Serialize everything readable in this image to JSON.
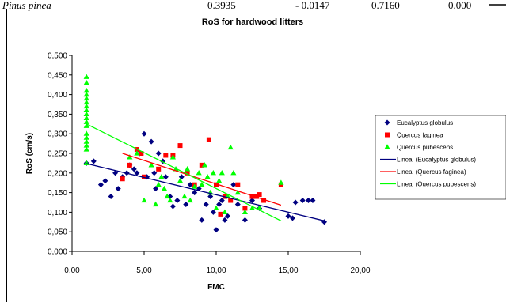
{
  "top_row": {
    "species": "Pinus pinea",
    "values": [
      "0.3935",
      "- 0.0147",
      "0.7160",
      "0.000"
    ]
  },
  "chart_data": {
    "type": "scatter",
    "title": "RoS for hardwood litters",
    "xlabel": "FMC",
    "ylabel": "RoS (cm/s)",
    "xlim": [
      0,
      20
    ],
    "ylim": [
      0,
      0.5
    ],
    "x_ticks": [
      "0,00",
      "5,00",
      "10,00",
      "15,00",
      "20,00"
    ],
    "y_ticks": [
      "0,000",
      "0,050",
      "0,100",
      "0,150",
      "0,200",
      "0,250",
      "0,300",
      "0,350",
      "0,400",
      "0,450",
      "0,500"
    ],
    "grid": false,
    "legend_position": "right",
    "series": [
      {
        "name": "Eucalyptus globulus",
        "marker": "diamond",
        "color": "#000080",
        "points": [
          [
            1.0,
            0.225
          ],
          [
            1.5,
            0.23
          ],
          [
            2.0,
            0.17
          ],
          [
            2.3,
            0.18
          ],
          [
            2.7,
            0.14
          ],
          [
            3.0,
            0.2
          ],
          [
            3.2,
            0.16
          ],
          [
            3.5,
            0.19
          ],
          [
            3.8,
            0.2
          ],
          [
            4.0,
            0.22
          ],
          [
            4.3,
            0.21
          ],
          [
            4.5,
            0.2
          ],
          [
            4.7,
            0.25
          ],
          [
            5.0,
            0.3
          ],
          [
            5.2,
            0.19
          ],
          [
            5.5,
            0.28
          ],
          [
            5.7,
            0.2
          ],
          [
            5.8,
            0.16
          ],
          [
            6.0,
            0.25
          ],
          [
            6.3,
            0.23
          ],
          [
            6.5,
            0.19
          ],
          [
            6.8,
            0.14
          ],
          [
            7.0,
            0.115
          ],
          [
            7.3,
            0.13
          ],
          [
            7.6,
            0.19
          ],
          [
            7.9,
            0.12
          ],
          [
            8.2,
            0.17
          ],
          [
            8.5,
            0.15
          ],
          [
            8.8,
            0.16
          ],
          [
            9.0,
            0.08
          ],
          [
            9.3,
            0.12
          ],
          [
            9.6,
            0.14
          ],
          [
            9.8,
            0.1
          ],
          [
            10.0,
            0.055
          ],
          [
            10.2,
            0.12
          ],
          [
            10.4,
            0.13
          ],
          [
            10.6,
            0.08
          ],
          [
            10.8,
            0.09
          ],
          [
            11.2,
            0.17
          ],
          [
            11.5,
            0.12
          ],
          [
            12.0,
            0.08
          ],
          [
            12.5,
            0.13
          ],
          [
            13.0,
            0.11
          ],
          [
            15.0,
            0.09
          ],
          [
            15.3,
            0.085
          ],
          [
            15.5,
            0.125
          ],
          [
            16.0,
            0.13
          ],
          [
            16.4,
            0.13
          ],
          [
            16.7,
            0.13
          ],
          [
            17.5,
            0.075
          ]
        ]
      },
      {
        "name": "Quercus faginea",
        "marker": "square",
        "color": "#FF0000",
        "points": [
          [
            3.5,
            0.185
          ],
          [
            4.0,
            0.22
          ],
          [
            4.5,
            0.26
          ],
          [
            4.8,
            0.25
          ],
          [
            5.0,
            0.19
          ],
          [
            6.0,
            0.21
          ],
          [
            6.5,
            0.245
          ],
          [
            7.0,
            0.245
          ],
          [
            7.5,
            0.27
          ],
          [
            8.0,
            0.2
          ],
          [
            8.5,
            0.17
          ],
          [
            9.0,
            0.22
          ],
          [
            9.5,
            0.285
          ],
          [
            10.0,
            0.17
          ],
          [
            10.3,
            0.095
          ],
          [
            10.6,
            0.14
          ],
          [
            11.0,
            0.13
          ],
          [
            11.5,
            0.17
          ],
          [
            12.0,
            0.11
          ],
          [
            12.5,
            0.14
          ],
          [
            12.8,
            0.14
          ],
          [
            13.0,
            0.145
          ],
          [
            13.3,
            0.13
          ],
          [
            14.5,
            0.17
          ]
        ]
      },
      {
        "name": "Quercus pubescens",
        "marker": "triangle",
        "color": "#00FF00",
        "points": [
          [
            1.0,
            0.445
          ],
          [
            1.0,
            0.43
          ],
          [
            1.0,
            0.41
          ],
          [
            1.0,
            0.4
          ],
          [
            1.0,
            0.39
          ],
          [
            1.0,
            0.38
          ],
          [
            1.0,
            0.37
          ],
          [
            1.0,
            0.36
          ],
          [
            1.0,
            0.35
          ],
          [
            1.0,
            0.34
          ],
          [
            1.0,
            0.33
          ],
          [
            1.0,
            0.32
          ],
          [
            1.0,
            0.3
          ],
          [
            1.0,
            0.29
          ],
          [
            1.0,
            0.28
          ],
          [
            1.0,
            0.27
          ],
          [
            1.0,
            0.26
          ],
          [
            1.0,
            0.225
          ],
          [
            4.0,
            0.24
          ],
          [
            4.5,
            0.25
          ],
          [
            5.0,
            0.13
          ],
          [
            5.5,
            0.22
          ],
          [
            5.8,
            0.12
          ],
          [
            6.0,
            0.17
          ],
          [
            6.2,
            0.19
          ],
          [
            6.4,
            0.16
          ],
          [
            6.6,
            0.14
          ],
          [
            6.8,
            0.13
          ],
          [
            7.0,
            0.24
          ],
          [
            7.2,
            0.21
          ],
          [
            7.5,
            0.18
          ],
          [
            7.8,
            0.14
          ],
          [
            8.0,
            0.21
          ],
          [
            8.2,
            0.13
          ],
          [
            8.5,
            0.165
          ],
          [
            8.8,
            0.2
          ],
          [
            9.0,
            0.17
          ],
          [
            9.2,
            0.22
          ],
          [
            9.4,
            0.19
          ],
          [
            9.6,
            0.15
          ],
          [
            9.8,
            0.2
          ],
          [
            10.0,
            0.11
          ],
          [
            10.2,
            0.18
          ],
          [
            10.4,
            0.2
          ],
          [
            10.6,
            0.1
          ],
          [
            10.8,
            0.14
          ],
          [
            11.0,
            0.265
          ],
          [
            11.2,
            0.2
          ],
          [
            11.5,
            0.15
          ],
          [
            12.0,
            0.1
          ],
          [
            12.5,
            0.11
          ],
          [
            13.0,
            0.11
          ],
          [
            14.5,
            0.175
          ]
        ]
      }
    ],
    "trendlines": [
      {
        "name": "Lineal (Eucalyptus globulus)",
        "color": "#000080",
        "x": [
          1.0,
          17.5
        ],
        "y": [
          0.224,
          0.078
        ]
      },
      {
        "name": "Lineal (Quercus faginea)",
        "color": "#FF0000",
        "x": [
          3.5,
          14.5
        ],
        "y": [
          0.25,
          0.118
        ]
      },
      {
        "name": "Lineal (Quercus pubescens)",
        "color": "#00FF00",
        "x": [
          1.0,
          14.5
        ],
        "y": [
          0.325,
          0.078
        ]
      }
    ]
  }
}
